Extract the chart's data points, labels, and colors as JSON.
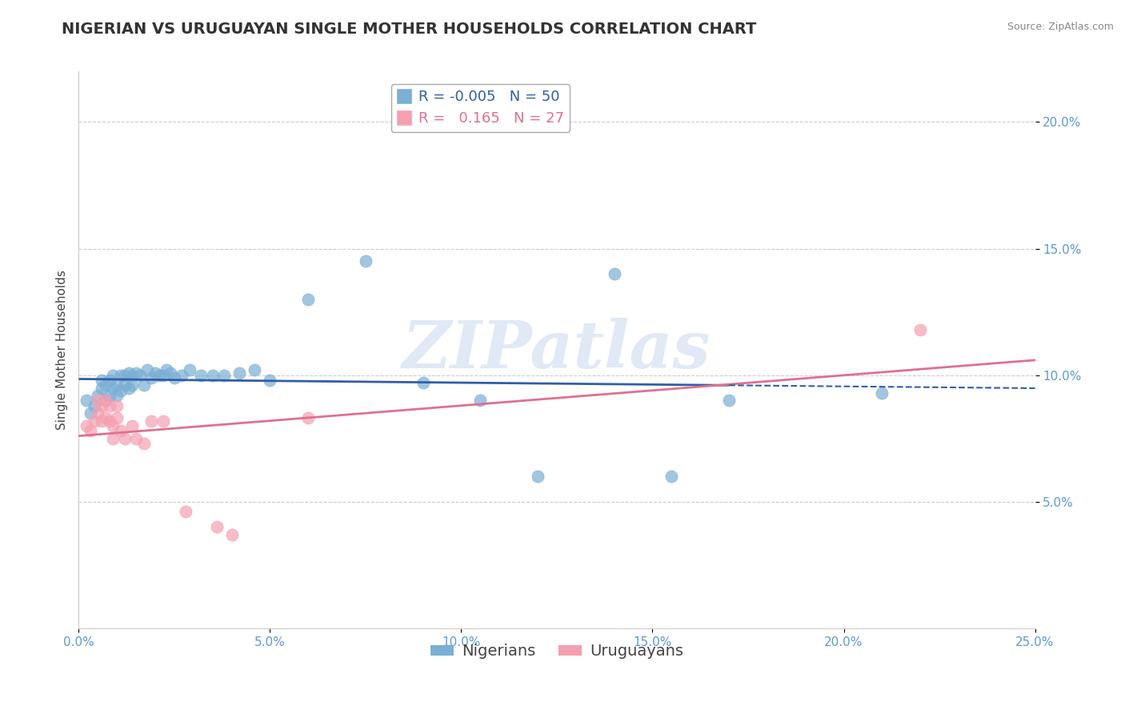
{
  "title": "NIGERIAN VS URUGUAYAN SINGLE MOTHER HOUSEHOLDS CORRELATION CHART",
  "source": "Source: ZipAtlas.com",
  "ylabel": "Single Mother Households",
  "xlim": [
    0.0,
    0.25
  ],
  "ylim": [
    0.0,
    0.22
  ],
  "xticks": [
    0.0,
    0.05,
    0.1,
    0.15,
    0.2,
    0.25
  ],
  "xticklabels": [
    "0.0%",
    "5.0%",
    "10.0%",
    "15.0%",
    "20.0%",
    "25.0%"
  ],
  "yticks": [
    0.05,
    0.1,
    0.15,
    0.2
  ],
  "yticklabels": [
    "5.0%",
    "10.0%",
    "15.0%",
    "20.0%"
  ],
  "nigerian_color": "#7BAFD4",
  "uruguayan_color": "#F4A0B0",
  "nigerian_line_color": "#2F5FA8",
  "uruguayan_line_color": "#E07090",
  "nigerian_R": -0.005,
  "nigerian_N": 50,
  "uruguayan_R": 0.165,
  "uruguayan_N": 27,
  "tick_color": "#5B9BD5",
  "grid_color": "#CCCCCC",
  "background_color": "#FFFFFF",
  "title_fontsize": 14,
  "axis_label_fontsize": 11,
  "tick_fontsize": 11,
  "legend_fontsize": 13,
  "nigerian_x": [
    0.002,
    0.003,
    0.004,
    0.005,
    0.006,
    0.006,
    0.007,
    0.007,
    0.008,
    0.008,
    0.009,
    0.009,
    0.01,
    0.01,
    0.011,
    0.011,
    0.012,
    0.012,
    0.013,
    0.013,
    0.014,
    0.014,
    0.015,
    0.016,
    0.017,
    0.018,
    0.019,
    0.02,
    0.021,
    0.022,
    0.023,
    0.024,
    0.025,
    0.027,
    0.029,
    0.032,
    0.035,
    0.038,
    0.042,
    0.046,
    0.05,
    0.06,
    0.075,
    0.09,
    0.105,
    0.12,
    0.14,
    0.155,
    0.17,
    0.21
  ],
  "nigerian_y": [
    0.09,
    0.085,
    0.088,
    0.092,
    0.095,
    0.098,
    0.09,
    0.096,
    0.092,
    0.098,
    0.095,
    0.1,
    0.092,
    0.096,
    0.094,
    0.1,
    0.096,
    0.1,
    0.095,
    0.101,
    0.1,
    0.096,
    0.101,
    0.1,
    0.096,
    0.102,
    0.099,
    0.101,
    0.1,
    0.1,
    0.102,
    0.101,
    0.099,
    0.1,
    0.102,
    0.1,
    0.1,
    0.1,
    0.101,
    0.102,
    0.098,
    0.13,
    0.145,
    0.097,
    0.09,
    0.06,
    0.14,
    0.06,
    0.09,
    0.093
  ],
  "uruguayan_x": [
    0.002,
    0.003,
    0.004,
    0.005,
    0.005,
    0.006,
    0.006,
    0.007,
    0.007,
    0.008,
    0.008,
    0.009,
    0.009,
    0.01,
    0.01,
    0.011,
    0.012,
    0.014,
    0.015,
    0.017,
    0.019,
    0.022,
    0.028,
    0.036,
    0.04,
    0.06,
    0.22
  ],
  "uruguayan_y": [
    0.08,
    0.078,
    0.082,
    0.085,
    0.09,
    0.082,
    0.088,
    0.083,
    0.09,
    0.082,
    0.088,
    0.075,
    0.08,
    0.083,
    0.088,
    0.078,
    0.075,
    0.08,
    0.075,
    0.073,
    0.082,
    0.082,
    0.046,
    0.04,
    0.037,
    0.083,
    0.118
  ]
}
